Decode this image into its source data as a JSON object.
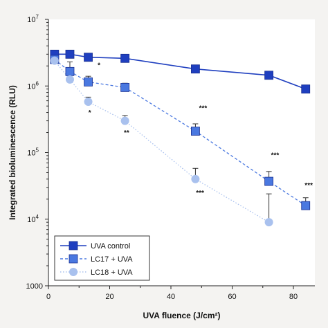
{
  "chart_data": {
    "type": "line",
    "xlabel": "UVA fluence (J/cm²)",
    "ylabel": "Integrated bioluminescence (RLU)",
    "xlim": [
      0,
      87
    ],
    "ylim": [
      1000,
      10000000
    ],
    "yscale": "log",
    "x_ticks": [
      0,
      20,
      40,
      60,
      80
    ],
    "x_tick_labels": [
      "0",
      "20",
      "40",
      "60",
      "80"
    ],
    "y_ticks": [
      {
        "value": 1000,
        "base": "1000",
        "exp": ""
      },
      {
        "value": 10000,
        "base": "10",
        "exp": "4"
      },
      {
        "value": 100000,
        "base": "10",
        "exp": "5"
      },
      {
        "value": 1000000,
        "base": "10",
        "exp": "6"
      },
      {
        "value": 10000000,
        "base": "10",
        "exp": "7"
      }
    ],
    "grid": false,
    "legend_position": "bottom-left",
    "series": [
      {
        "name": "UVA control",
        "color": "#1f3fbf",
        "marker": "square",
        "line": "solid",
        "x": [
          2,
          7,
          13,
          25,
          48,
          72,
          84
        ],
        "y": [
          3000000,
          3000000,
          2700000,
          2600000,
          1800000,
          1450000,
          900000
        ]
      },
      {
        "name": "LC17 + UVA",
        "color": "#4a78e0",
        "marker": "square",
        "line": "dashed",
        "x": [
          2,
          7,
          13,
          25,
          48,
          72,
          84
        ],
        "y": [
          2500000,
          1650000,
          1150000,
          950000,
          210000,
          37000,
          16000
        ],
        "err_up": [
          3000000,
          2300000,
          1400000,
          1100000,
          270000,
          52000,
          21000
        ]
      },
      {
        "name": "LC18 + UVA",
        "color": "#a9c1ee",
        "marker": "circle",
        "line": "dotted",
        "x": [
          2,
          7,
          13,
          25,
          48,
          72
        ],
        "y": [
          2400000,
          1250000,
          580000,
          300000,
          40000,
          9000
        ],
        "err_up": [
          null,
          null,
          680000,
          360000,
          58000,
          24000
        ]
      }
    ],
    "annotations": [
      {
        "text": "*",
        "x": 16.5,
        "y": 1900000
      },
      {
        "text": "*",
        "x": 13.5,
        "y": 370000
      },
      {
        "text": "**",
        "x": 25.5,
        "y": 185000
      },
      {
        "text": "***",
        "x": 50.5,
        "y": 430000
      },
      {
        "text": "***",
        "x": 49.5,
        "y": 23000
      },
      {
        "text": "***",
        "x": 74,
        "y": 85000
      },
      {
        "text": "***",
        "x": 85,
        "y": 30000
      }
    ]
  }
}
